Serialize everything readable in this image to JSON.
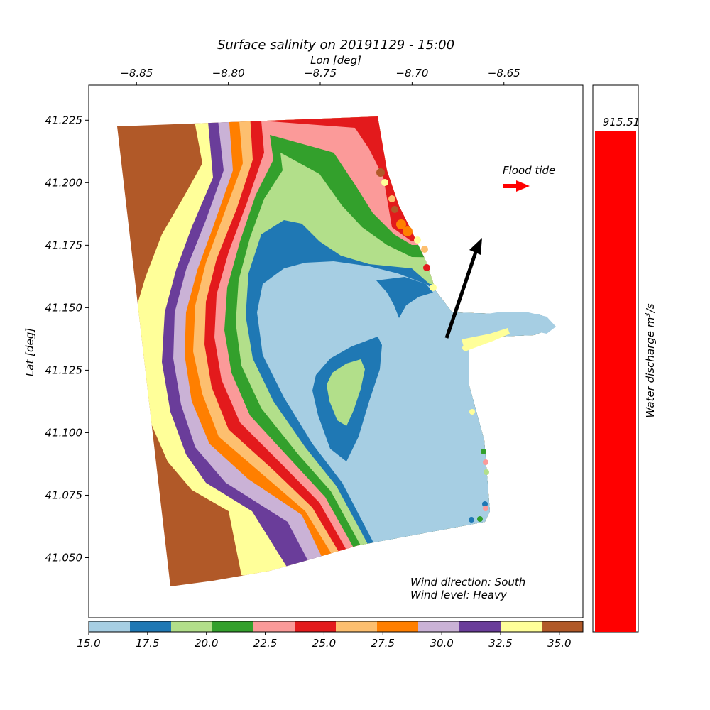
{
  "title": "Surface salinity on 20191129 - 15:00",
  "chart_data": [
    {
      "type": "heatmap",
      "title": "Surface salinity on 20191129 - 15:00",
      "xlabel": "Lon [deg]",
      "ylabel": "Lat [deg]",
      "xlim": [
        -8.876,
        -8.607
      ],
      "ylim": [
        41.026,
        41.239
      ],
      "x_ticks": [
        "−8.85",
        "−8.80",
        "−8.75",
        "−8.70",
        "−8.65"
      ],
      "y_ticks": [
        "41.225",
        "41.200",
        "41.175",
        "41.150",
        "41.125",
        "41.100",
        "41.075",
        "41.050"
      ],
      "x_tick_values": [
        -8.85,
        -8.8,
        -8.75,
        -8.7,
        -8.65
      ],
      "y_tick_values": [
        41.225,
        41.2,
        41.175,
        41.15,
        41.125,
        41.1,
        41.075,
        41.05
      ],
      "grid": false,
      "colorbar": {
        "orientation": "horizontal",
        "min": 15.0,
        "max": 36.0,
        "bins": 12,
        "colors": [
          "#a6cee3",
          "#1f78b4",
          "#b2df8a",
          "#33a02c",
          "#fb9a99",
          "#e31a1c",
          "#fdbf6f",
          "#ff7f00",
          "#cab2d6",
          "#6a3d9a",
          "#ffff99",
          "#b15928"
        ],
        "ticks": [
          "15.0",
          "17.5",
          "20.0",
          "22.5",
          "25.0",
          "27.5",
          "30.0",
          "32.5",
          "35.0"
        ],
        "tick_values": [
          15.0,
          17.5,
          20.0,
          22.5,
          25.0,
          27.5,
          30.0,
          32.5,
          35.0
        ]
      },
      "annotations": {
        "flood_tide_label": "Flood tide",
        "tide_arrow_color": "#ff0000",
        "tide_direction": "east",
        "wind_arrow_color": "#000000",
        "wind_direction_text": "Wind direction: South",
        "wind_level_text": "Wind level: Heavy"
      }
    },
    {
      "type": "bar",
      "categories": [
        ""
      ],
      "values": [
        915.51
      ],
      "value_label": "915.51",
      "ylabel": "Water discharge m³/s",
      "ylabel_main": "Water discharge m",
      "ylabel_sup": "3",
      "ylabel_tail": "/s",
      "bar_color": "#ff0000"
    }
  ]
}
